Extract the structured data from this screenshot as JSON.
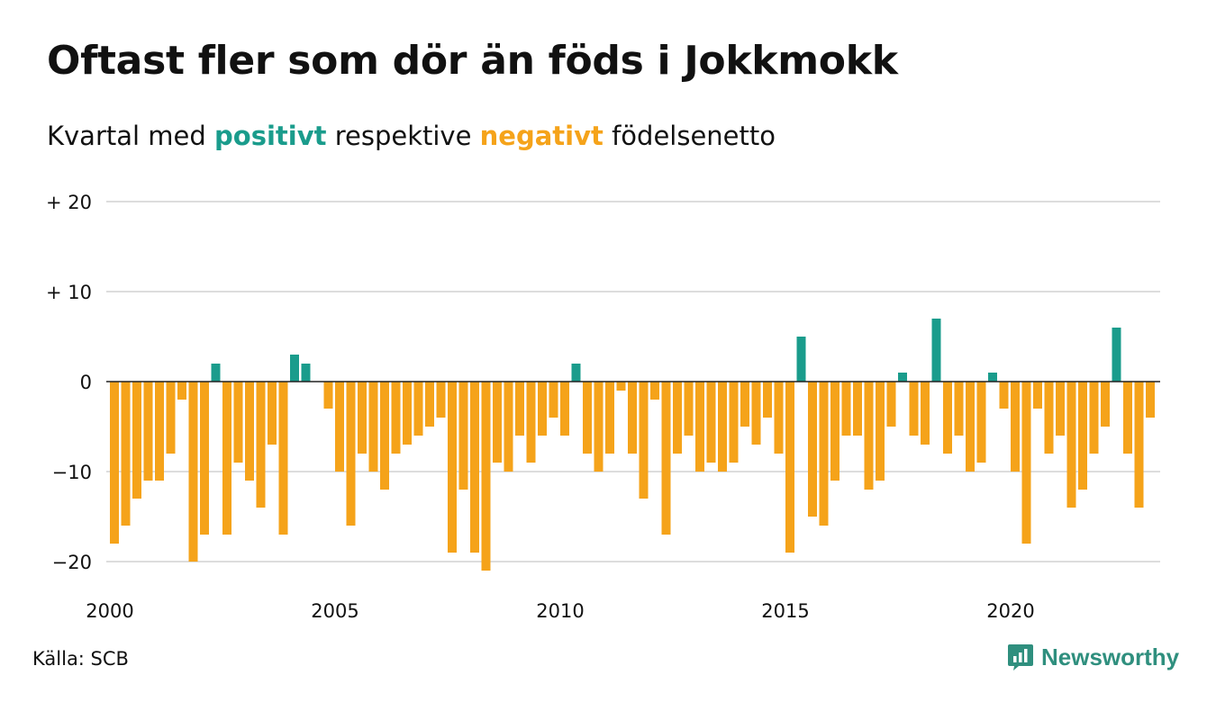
{
  "title": "Oftast fler som dör än föds i Jokkmokk",
  "subtitle": {
    "prefix": "Kvartal med",
    "positive_word": "positivt",
    "middle": "respektive",
    "negative_word": "negativt",
    "suffix": "födelsenetto"
  },
  "source": "Källa: SCB",
  "logo": {
    "text": "Newsworthy",
    "icon": "newsworthy-chart-icon"
  },
  "colors": {
    "positive": "#1a9c8c",
    "negative": "#f5a31a",
    "grid": "#dddddd",
    "axis": "#222222",
    "logo": "#2f8f7e"
  },
  "chart_data": {
    "type": "bar",
    "title": "",
    "xlabel": "",
    "ylabel": "",
    "ylim": [
      -21,
      20
    ],
    "y_ticks": [
      {
        "value": 20,
        "label": "+ 20"
      },
      {
        "value": 10,
        "label": "+ 10"
      },
      {
        "value": 0,
        "label": "0"
      },
      {
        "value": -10,
        "label": "−10"
      },
      {
        "value": -20,
        "label": "−20"
      }
    ],
    "x_start_year": 2000,
    "x_ticks": [
      {
        "value": 2000,
        "label": "2000"
      },
      {
        "value": 2005,
        "label": "2005"
      },
      {
        "value": 2010,
        "label": "2010"
      },
      {
        "value": 2015,
        "label": "2015"
      },
      {
        "value": 2020,
        "label": "2020"
      }
    ],
    "grid": true,
    "legend": "none",
    "values": [
      -18,
      -16,
      -13,
      -11,
      -11,
      -8,
      -2,
      -20,
      -17,
      2,
      -17,
      -9,
      -11,
      -14,
      -7,
      -17,
      3,
      2,
      0,
      -3,
      -10,
      -16,
      -8,
      -10,
      -12,
      -8,
      -7,
      -6,
      -5,
      -4,
      -19,
      -12,
      -19,
      -21,
      -9,
      -10,
      -6,
      -9,
      -6,
      -4,
      -6,
      2,
      -8,
      -10,
      -8,
      -1,
      -8,
      -13,
      -2,
      -17,
      -8,
      -6,
      -10,
      -9,
      -10,
      -9,
      -5,
      -7,
      -4,
      -8,
      -19,
      5,
      -15,
      -16,
      -11,
      -6,
      -6,
      -12,
      -11,
      -5,
      1,
      -6,
      -7,
      7,
      -8,
      -6,
      -10,
      -9,
      1,
      -3,
      -10,
      -18,
      -3,
      -8,
      -6,
      -14,
      -12,
      -8,
      -5,
      6,
      -8,
      -14,
      -4
    ]
  }
}
